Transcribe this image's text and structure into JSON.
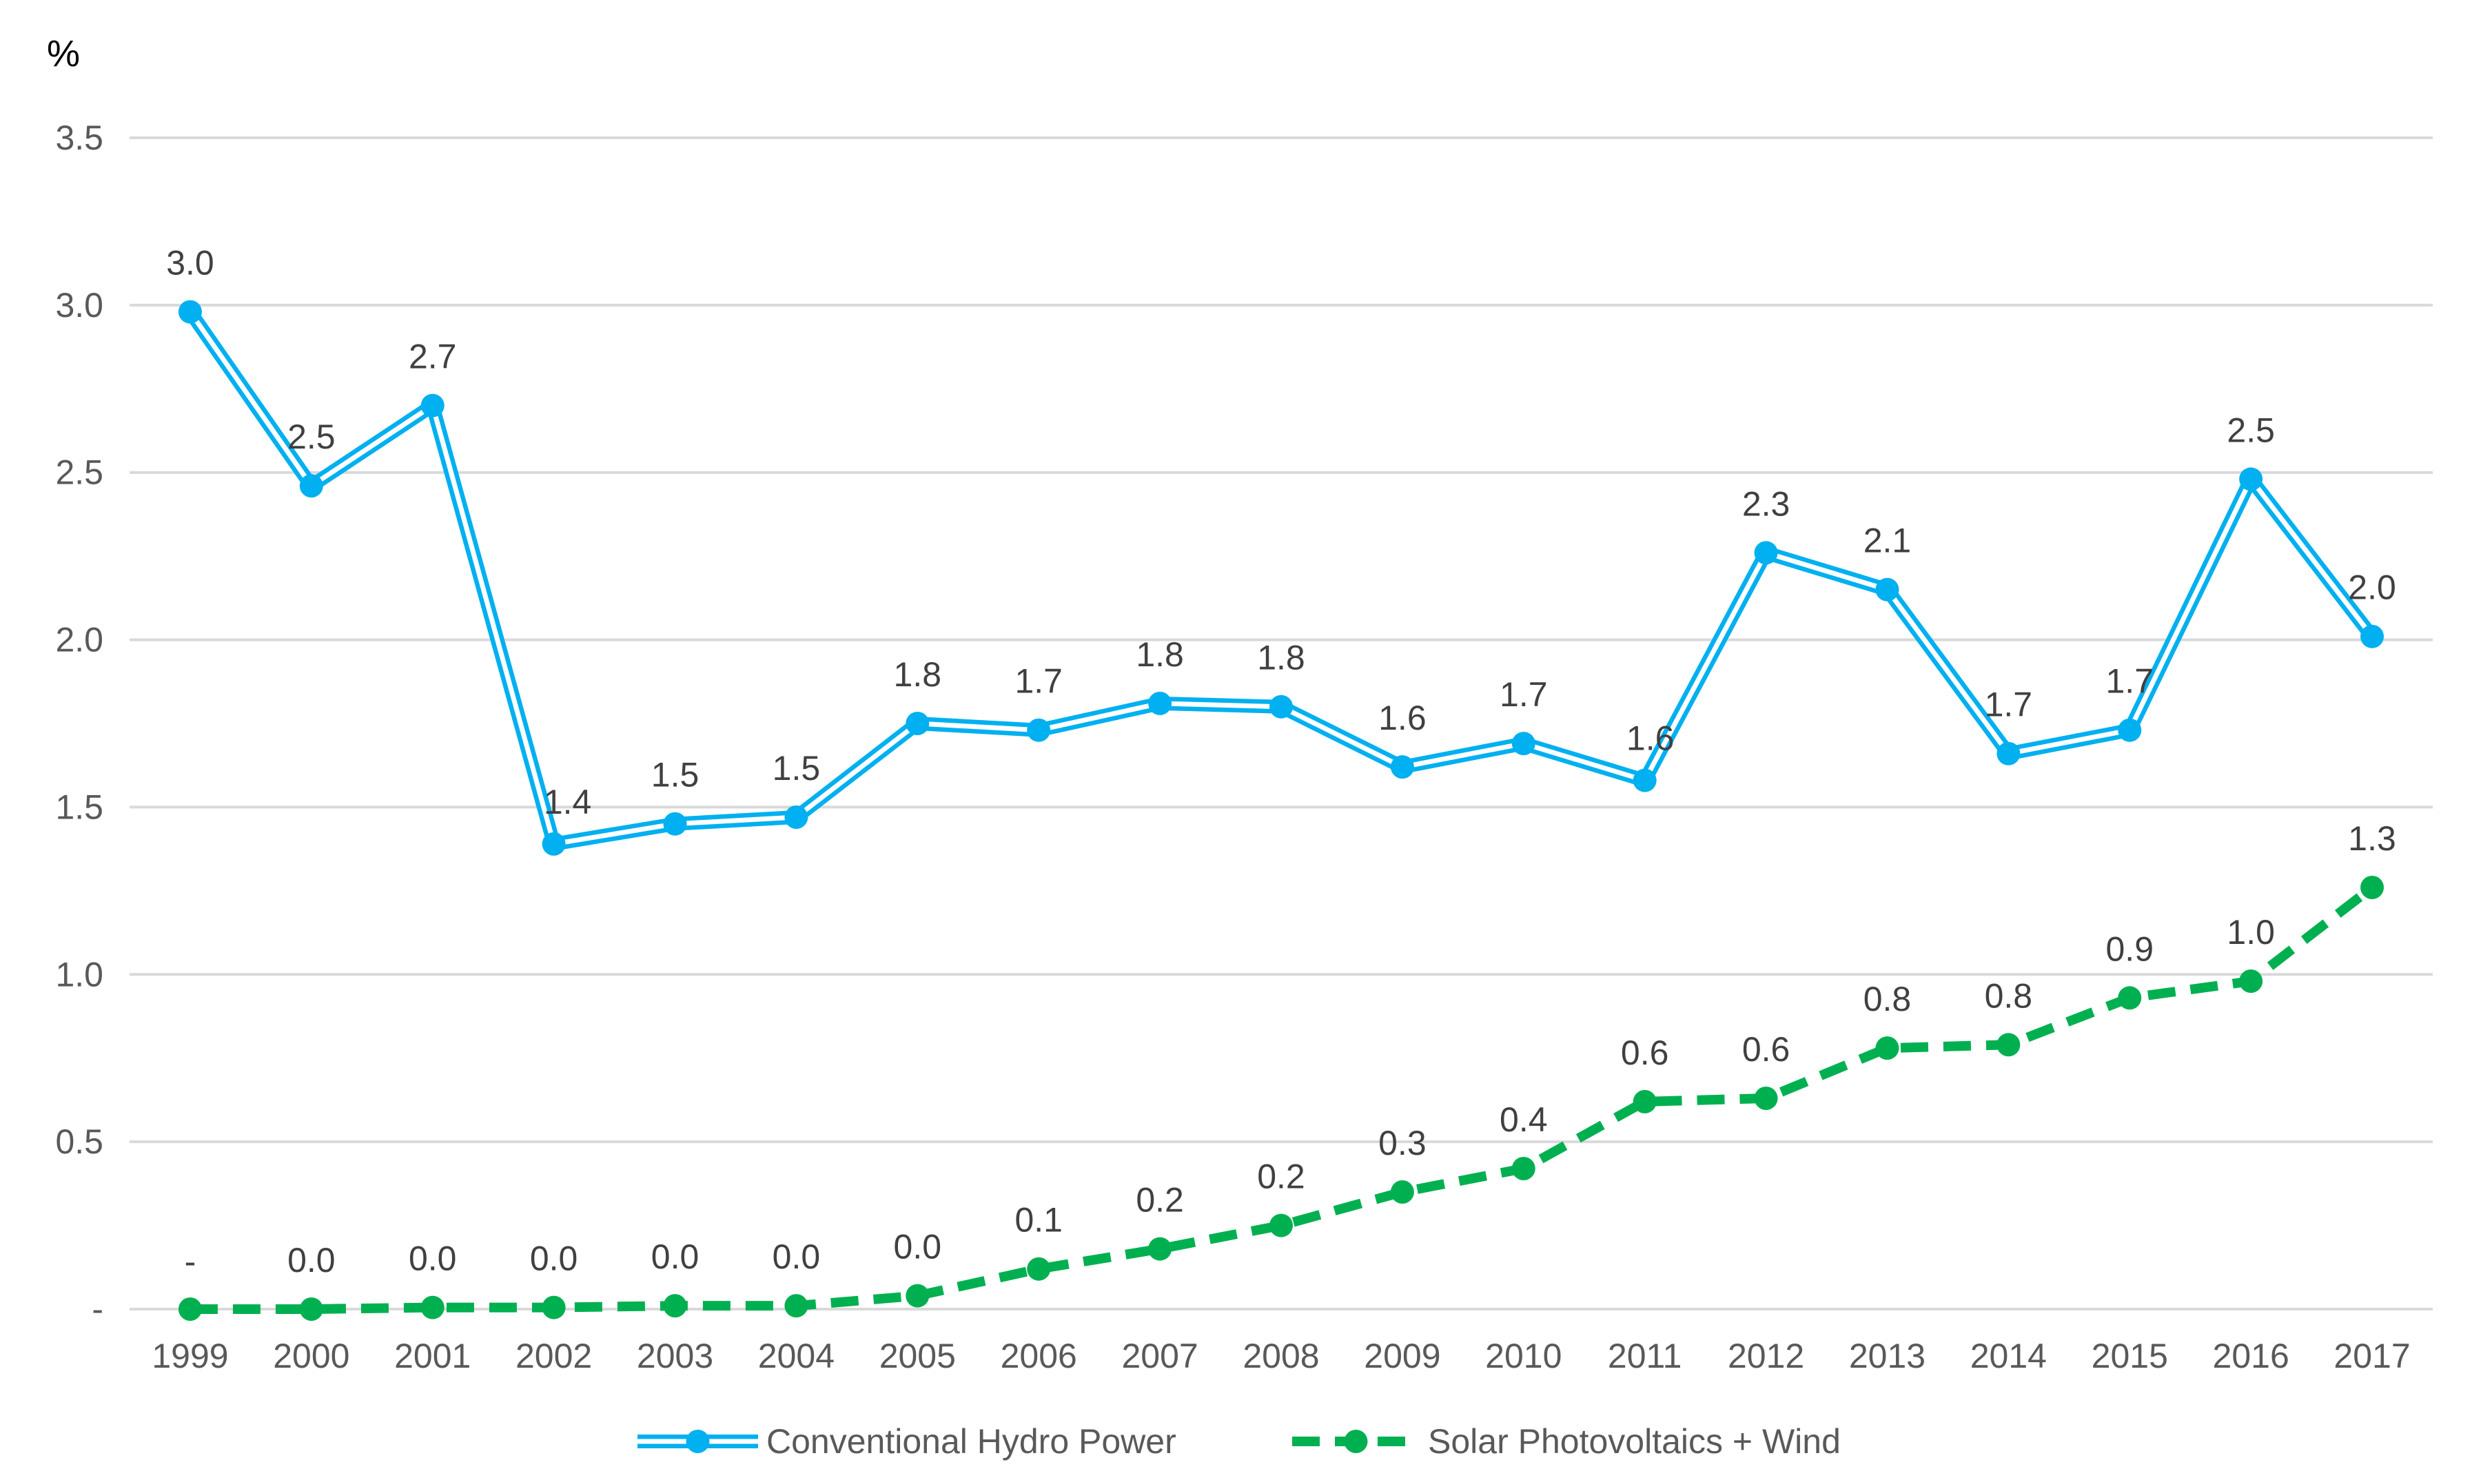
{
  "chart_data": {
    "type": "line",
    "title": "",
    "ylabel": "%",
    "xlabel": "",
    "ylim": [
      0,
      3.5
    ],
    "yticks": [
      0,
      0.5,
      1.0,
      1.5,
      2.0,
      2.5,
      3.0,
      3.5
    ],
    "ytick_labels": [
      "-",
      "0.5",
      "1.0",
      "1.5",
      "2.0",
      "2.5",
      "3.0",
      "3.5"
    ],
    "grid": true,
    "legend_position": "bottom",
    "categories": [
      "1999",
      "2000",
      "2001",
      "2002",
      "2003",
      "2004",
      "2005",
      "2006",
      "2007",
      "2008",
      "2009",
      "2010",
      "2011",
      "2012",
      "2013",
      "2014",
      "2015",
      "2016",
      "2017"
    ],
    "series": [
      {
        "name": "Conventional Hydro Power",
        "color": "#00B0F0",
        "style": "double-line",
        "values": [
          2.98,
          2.46,
          2.7,
          1.39,
          1.45,
          1.47,
          1.75,
          1.73,
          1.81,
          1.8,
          1.62,
          1.69,
          1.58,
          2.26,
          2.15,
          1.66,
          1.73,
          2.48,
          2.01
        ],
        "labels": [
          "3.0",
          "2.5",
          "2.7",
          "1.4",
          "1.5",
          "1.5",
          "1.8",
          "1.7",
          "1.8",
          "1.8",
          "1.6",
          "1.7",
          "1.6",
          "2.3",
          "2.1",
          "1.7",
          "1.7",
          "2.5",
          "2.0"
        ]
      },
      {
        "name": "Solar Photovoltaics + Wind",
        "color": "#00B050",
        "style": "dashed",
        "values": [
          0.0,
          0.0,
          0.005,
          0.005,
          0.01,
          0.01,
          0.04,
          0.12,
          0.18,
          0.25,
          0.35,
          0.42,
          0.62,
          0.63,
          0.78,
          0.79,
          0.93,
          0.98,
          1.26
        ],
        "labels": [
          "-",
          "0.0",
          "0.0",
          "0.0",
          "0.0",
          "0.0",
          "0.0",
          "0.1",
          "0.2",
          "0.2",
          "0.3",
          "0.4",
          "0.6",
          "0.6",
          "0.8",
          "0.8",
          "0.9",
          "1.0",
          "1.3"
        ]
      }
    ]
  }
}
